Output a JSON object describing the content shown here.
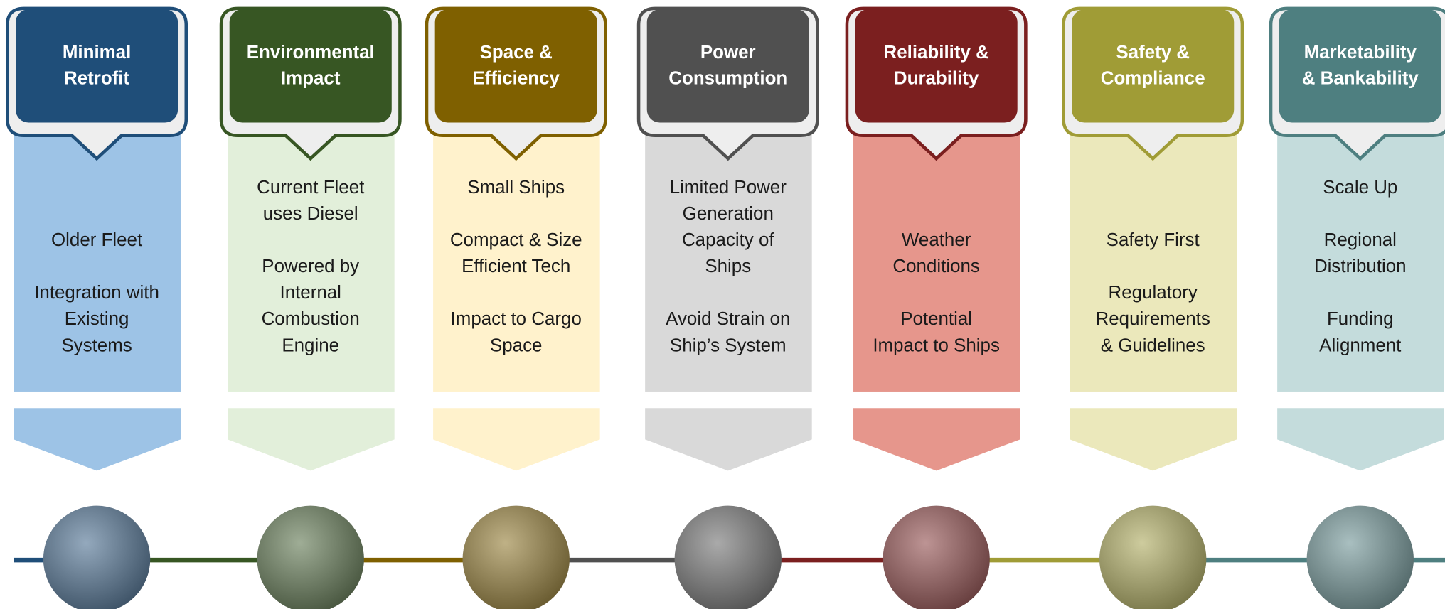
{
  "columns": [
    {
      "title": [
        "Minimal",
        "Retrofit"
      ],
      "items": [
        [
          "Older Fleet"
        ],
        [
          "Integration with",
          "Existing",
          "Systems"
        ]
      ]
    },
    {
      "title": [
        "Environmental",
        "Impact"
      ],
      "items": [
        [
          "Current Fleet",
          "uses Diesel"
        ],
        [
          "Powered by",
          "Internal",
          "Combustion",
          "Engine"
        ]
      ]
    },
    {
      "title": [
        "Space &",
        "Efficiency"
      ],
      "items": [
        [
          "Small Ships"
        ],
        [
          "Compact & Size",
          "Efficient Tech"
        ],
        [
          "Impact to Cargo",
          "Space"
        ]
      ]
    },
    {
      "title": [
        "Power",
        "Consumption"
      ],
      "items": [
        [
          "Limited Power",
          "Generation",
          "Capacity of",
          "Ships"
        ],
        [
          "Avoid Strain on",
          "Ship’s System"
        ]
      ]
    },
    {
      "title": [
        "Reliability &",
        "Durability"
      ],
      "items": [
        [
          "Weather",
          "Conditions"
        ],
        [
          "Potential",
          "Impact to Ships"
        ]
      ]
    },
    {
      "title": [
        "Safety &",
        "Compliance"
      ],
      "items": [
        [
          "Safety First"
        ],
        [
          "Regulatory",
          "Requirements",
          "& Guidelines"
        ]
      ]
    },
    {
      "title": [
        "Marketability",
        "& Bankability"
      ],
      "items": [
        [
          "Scale Up"
        ],
        [
          "Regional",
          "Distribution"
        ],
        [
          "Funding",
          "Alignment"
        ]
      ]
    }
  ]
}
